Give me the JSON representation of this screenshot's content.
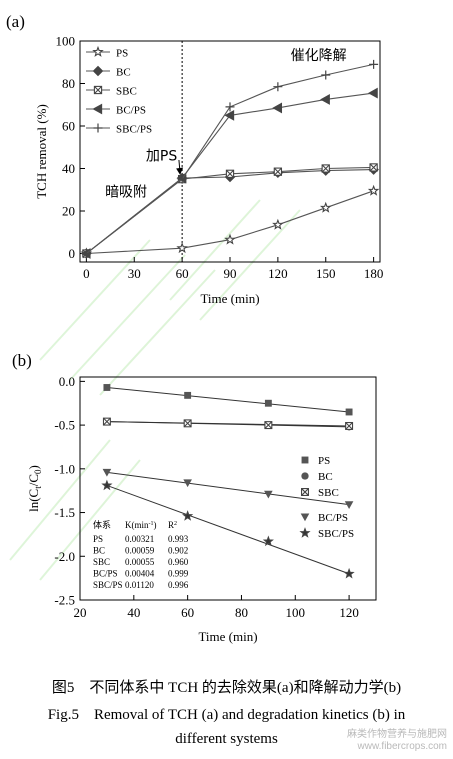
{
  "figure": {
    "caption_cn": "图5　不同体系中 TCH 的去除效果(a)和降解动力学(b)",
    "caption_en_line1": "Fig.5　Removal of TCH (a) and degradation kinetics (b) in",
    "caption_en_line2": "different systems",
    "watermark_cn": "麻类作物营养与施肥网",
    "watermark_url": "www.fibercrops.com"
  },
  "chart_data": [
    {
      "type": "line",
      "panel_label": "(a)",
      "xlabel": "Time  (min)",
      "ylabel": "TCH removal (%)",
      "xlim": [
        -4,
        184
      ],
      "ylim": [
        -4,
        100
      ],
      "xticks": [
        0,
        30,
        60,
        90,
        120,
        150,
        180
      ],
      "yticks": [
        0,
        20,
        40,
        60,
        80,
        100
      ],
      "grid": false,
      "legend_position": "top-left",
      "annotations": [
        {
          "text": "催化降解",
          "x": 128,
          "y": 91
        },
        {
          "text": "加PS",
          "x": 58,
          "y": 49
        },
        {
          "text": "暗吸附",
          "x": 28,
          "y": 32
        }
      ],
      "vline_x": 60,
      "series": [
        {
          "name": "PS",
          "marker": "star-open",
          "x": [
            0,
            60,
            90,
            120,
            150,
            180
          ],
          "values": [
            0,
            2.5,
            6.5,
            13.5,
            21.5,
            29.5
          ]
        },
        {
          "name": "BC",
          "marker": "diamond-filled",
          "x": [
            0,
            60,
            90,
            120,
            150,
            180
          ],
          "values": [
            0,
            35.5,
            36,
            38,
            39,
            39.5
          ]
        },
        {
          "name": "SBC",
          "marker": "square-x",
          "x": [
            0,
            60,
            90,
            120,
            150,
            180
          ],
          "values": [
            0,
            35,
            37.5,
            38.5,
            40,
            40.5
          ]
        },
        {
          "name": "BC/PS",
          "marker": "triangle-left",
          "x": [
            0,
            60,
            90,
            120,
            150,
            180
          ],
          "values": [
            0,
            35.5,
            65,
            68.5,
            72.5,
            75.5
          ]
        },
        {
          "name": "SBC/PS",
          "marker": "plus",
          "x": [
            0,
            60,
            90,
            120,
            150,
            180
          ],
          "values": [
            0,
            35,
            69,
            78.5,
            84,
            89
          ]
        }
      ]
    },
    {
      "type": "scatter",
      "panel_label": "(b)",
      "xlabel": "Time (min)",
      "ylabel_main": "ln(C",
      "ylabel_sub1": "t",
      "ylabel_mid": "/C",
      "ylabel_sub2": "0",
      "ylabel_end": ")",
      "xlim": [
        20,
        130
      ],
      "ylim": [
        -2.5,
        0.05
      ],
      "xticks": [
        20,
        40,
        60,
        80,
        100,
        120
      ],
      "yticks": [
        0.0,
        -0.5,
        -1.0,
        -1.5,
        -2.0,
        -2.5
      ],
      "ytick_labels": [
        "0.0",
        "-0.5",
        "-1.0",
        "-1.5",
        "-2.0",
        "-2.5"
      ],
      "grid": false,
      "legend_position": "center-right",
      "series": [
        {
          "name": "PS",
          "marker": "square",
          "x": [
            30,
            60,
            90,
            120
          ],
          "values": [
            -0.07,
            -0.16,
            -0.25,
            -0.35
          ],
          "fit": [
            -0.07,
            -0.35
          ]
        },
        {
          "name": "BC",
          "marker": "circle",
          "x": [
            30,
            60,
            90,
            120
          ],
          "values": [
            -0.46,
            -0.48,
            -0.5,
            -0.52
          ],
          "fit": [
            -0.46,
            -0.52
          ]
        },
        {
          "name": "SBC",
          "marker": "box-x",
          "x": [
            30,
            60,
            90,
            120
          ],
          "values": [
            -0.46,
            -0.48,
            -0.5,
            -0.51
          ],
          "fit": [
            -0.46,
            -0.51
          ]
        },
        {
          "name": "BC/PS",
          "marker": "triangle-down",
          "x": [
            30,
            60,
            90,
            120
          ],
          "values": [
            -1.04,
            -1.16,
            -1.29,
            -1.41
          ],
          "fit": [
            -1.04,
            -1.41
          ]
        },
        {
          "name": "SBC/PS",
          "marker": "star",
          "x": [
            30,
            60,
            90,
            120
          ],
          "values": [
            -1.19,
            -1.54,
            -1.83,
            -2.2
          ],
          "fit": [
            -1.19,
            -2.2
          ]
        }
      ],
      "table": {
        "headers": [
          "体系",
          "K(min",
          "-1",
          ")",
          "R",
          "2"
        ],
        "rows": [
          [
            "PS",
            "0.00321",
            "0.993"
          ],
          [
            "BC",
            "0.00059",
            "0.902"
          ],
          [
            "SBC",
            "0.00055",
            "0.960"
          ],
          [
            "BC/PS",
            "0.00404",
            "0.999"
          ],
          [
            "SBC/PS",
            "0.01120",
            "0.996"
          ]
        ]
      }
    }
  ]
}
